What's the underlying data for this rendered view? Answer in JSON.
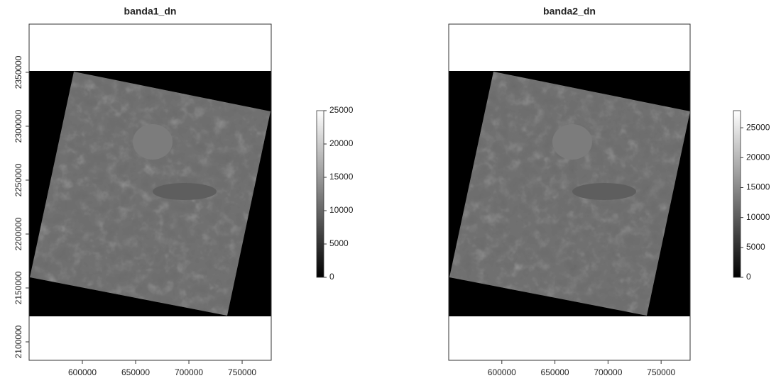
{
  "chart_data": [
    {
      "type": "raster",
      "title": "banda1_dn",
      "xlim": [
        550000,
        777300
      ],
      "xticks": [
        600000,
        650000,
        700000,
        750000
      ],
      "ylim": [
        2082900,
        2394700
      ],
      "yticks": [
        2100000,
        2150000,
        2200000,
        2250000,
        2300000,
        2350000
      ],
      "zlim": [
        0,
        25000
      ],
      "zticks": [
        0,
        5000,
        10000,
        15000,
        20000,
        25000
      ]
    },
    {
      "type": "raster",
      "title": "banda2_dn",
      "xlim": [
        550000,
        777300
      ],
      "xticks": [
        600000,
        650000,
        700000,
        750000
      ],
      "ylim": [
        2082900,
        2394700
      ],
      "zlim": [
        0,
        27860
      ],
      "zticks": [
        0,
        5000,
        10000,
        15000,
        20000,
        25000
      ]
    }
  ]
}
